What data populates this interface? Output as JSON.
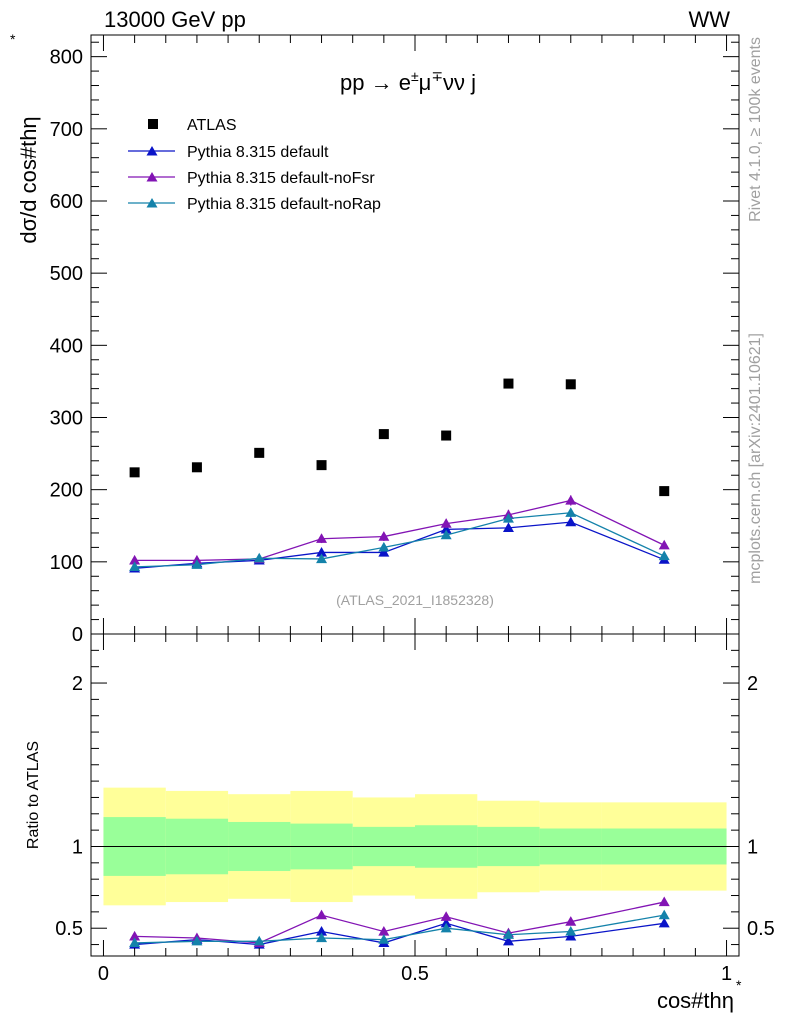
{
  "header": {
    "left": "13000 GeV pp",
    "right": "WW"
  },
  "side_labels": {
    "rivet": "Rivet 4.1.0, ≥ 100k events",
    "mcplots": "mcplots.cern.ch [arXiv:2401.10621]"
  },
  "chart_data": {
    "type": "scatter",
    "process_label": {
      "pre": "pp → e",
      "sup1": "±",
      "mid": "μ",
      "sup2": "∓",
      "post": "νν j"
    },
    "analysis_id": "(ATLAS_2021_I1852328)",
    "xlabel": "cos#thη",
    "xlabel_sup": "*",
    "ylabel": "dσ/d cos#thη",
    "ylabel_sup": "*",
    "ratio_ylabel": "Ratio to ATLAS",
    "xlim": [
      -0.02,
      1.02
    ],
    "ylim": [
      0,
      830
    ],
    "ratio_ylim": [
      0.33,
      2.3
    ],
    "x_ticks": [
      {
        "value": 0,
        "label": "0"
      },
      {
        "value": 0.5,
        "label": "0.5"
      },
      {
        "value": 1,
        "label": "1"
      }
    ],
    "y_ticks": [
      {
        "value": 0,
        "label": "0"
      },
      {
        "value": 100,
        "label": "100"
      },
      {
        "value": 200,
        "label": "200"
      },
      {
        "value": 300,
        "label": "300"
      },
      {
        "value": 400,
        "label": "400"
      },
      {
        "value": 500,
        "label": "500"
      },
      {
        "value": 600,
        "label": "600"
      },
      {
        "value": 700,
        "label": "700"
      },
      {
        "value": 800,
        "label": "800"
      }
    ],
    "ratio_y_ticks": [
      {
        "value": 0.5,
        "label": "0.5"
      },
      {
        "value": 1,
        "label": "1"
      },
      {
        "value": 2,
        "label": "2"
      }
    ],
    "bin_edges": [
      0,
      0.1,
      0.2,
      0.3,
      0.4,
      0.5,
      0.6,
      0.7,
      0.8,
      1.0
    ],
    "x": [
      0.05,
      0.15,
      0.25,
      0.35,
      0.45,
      0.55,
      0.65,
      0.75,
      0.9
    ],
    "data": {
      "name": "ATLAS",
      "color": "#000000",
      "values": [
        224,
        231,
        251,
        234,
        277,
        275,
        347,
        346,
        198
      ]
    },
    "band_inner": [
      0.82,
      0.83,
      0.85,
      0.86,
      0.88,
      0.87,
      0.88,
      0.89,
      0.89
    ],
    "band_outer": [
      0.64,
      0.66,
      0.68,
      0.66,
      0.7,
      0.68,
      0.72,
      0.73,
      0.73
    ],
    "series": [
      {
        "name": "Pythia 8.315 default",
        "color": "#0a14c8",
        "values": [
          91,
          98,
          102,
          113,
          113,
          145,
          147,
          155,
          103
        ],
        "errors": [
          3,
          3,
          3,
          4,
          4,
          5,
          5,
          5,
          4
        ],
        "ratio": [
          0.4,
          0.43,
          0.4,
          0.48,
          0.41,
          0.53,
          0.42,
          0.45,
          0.53
        ],
        "ratio_errors": [
          0.02,
          0.02,
          0.02,
          0.02,
          0.02,
          0.02,
          0.02,
          0.02,
          0.015
        ]
      },
      {
        "name": "Pythia 8.315 default-noFsr",
        "color": "#8214b4",
        "values": [
          102,
          102,
          104,
          132,
          135,
          153,
          165,
          185,
          123
        ],
        "errors": [
          4,
          4,
          4,
          6,
          6,
          6,
          7,
          7,
          5
        ],
        "ratio": [
          0.45,
          0.44,
          0.41,
          0.58,
          0.48,
          0.57,
          0.47,
          0.54,
          0.66
        ],
        "ratio_errors": [
          0.02,
          0.02,
          0.02,
          0.02,
          0.02,
          0.02,
          0.02,
          0.02,
          0.015
        ]
      },
      {
        "name": "Pythia 8.315 default-noRap",
        "color": "#1482aa",
        "values": [
          93,
          96,
          105,
          104,
          120,
          137,
          160,
          168,
          108
        ],
        "errors": [
          3,
          3,
          4,
          4,
          4,
          5,
          6,
          6,
          4
        ],
        "ratio": [
          0.41,
          0.42,
          0.42,
          0.44,
          0.43,
          0.5,
          0.46,
          0.48,
          0.58
        ],
        "ratio_errors": [
          0.02,
          0.02,
          0.02,
          0.02,
          0.02,
          0.02,
          0.02,
          0.02,
          0.015
        ]
      }
    ]
  }
}
